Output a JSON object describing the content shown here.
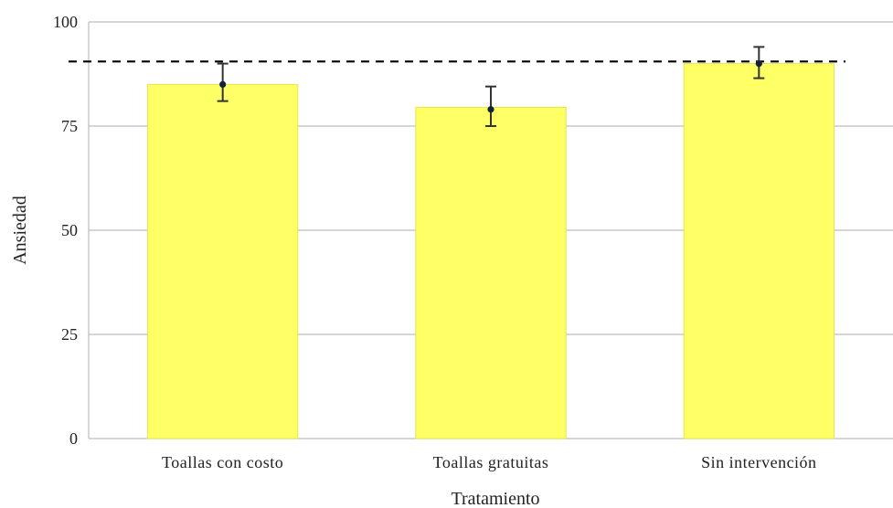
{
  "chart_data": {
    "type": "bar",
    "title": "",
    "xlabel": "Tratamiento",
    "ylabel": "Ansiedad",
    "ylim": [
      0,
      100
    ],
    "yticks": [
      0,
      25,
      50,
      75,
      100
    ],
    "grid": true,
    "categories": [
      "Toallas con costo",
      "Toallas gratuitas",
      "Sin intervención"
    ],
    "series": [
      {
        "values": [
          85,
          79.5,
          90
        ],
        "point": [
          85,
          79,
          90
        ],
        "error_low": [
          81,
          75,
          86.5
        ],
        "error_high": [
          90,
          84.5,
          94
        ]
      }
    ],
    "reference_line": {
      "value": 90.5,
      "style": "dashed"
    },
    "colors": {
      "bar": "#ffff66",
      "bar_stroke": "#e6e64d",
      "point": "#14213d",
      "error": "#333333",
      "grid": "#bdbdbd",
      "reference": "#000000"
    }
  }
}
